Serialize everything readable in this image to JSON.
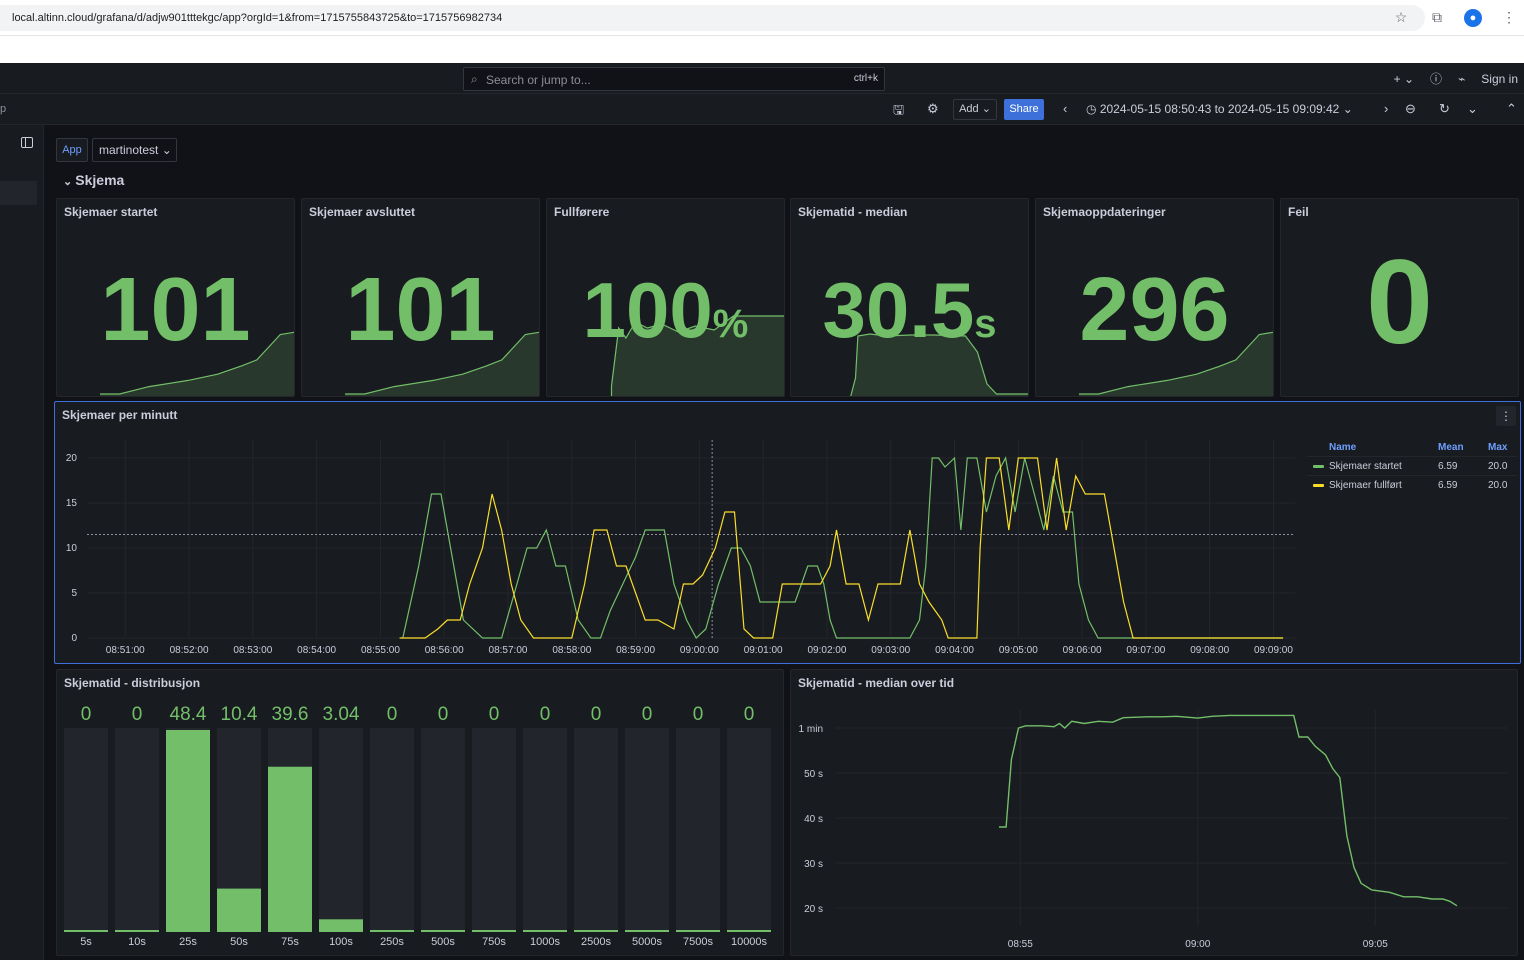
{
  "browser": {
    "url": "local.altinn.cloud/grafana/d/adjw901tttekgc/app?orgId=1&from=1715755843725&to=1715756982734",
    "avatar_glyph": "●"
  },
  "topnav": {
    "search_placeholder": "Search or jump to...",
    "search_shortcut": "ctrl+k",
    "plus_label": "+",
    "sign_in": "Sign in"
  },
  "toolbar": {
    "left_text": "p",
    "add_label": "Add",
    "share_label": "Share",
    "time_range": "2024-05-15 08:50:43 to 2024-05-15 09:09:42"
  },
  "variables": {
    "label": "App",
    "value": "martinotest"
  },
  "row": {
    "title": "Skjema"
  },
  "stats": [
    {
      "title": "Skjemaer startet",
      "value": "101",
      "unit": ""
    },
    {
      "title": "Skjemaer avsluttet",
      "value": "101",
      "unit": ""
    },
    {
      "title": "Fullførere",
      "value": "100",
      "unit": "%"
    },
    {
      "title": "Skjematid - median",
      "value": "30.5",
      "unit": "s"
    },
    {
      "title": "Skjemaoppdateringer",
      "value": "296",
      "unit": ""
    },
    {
      "title": "Feil",
      "value": "0",
      "unit": ""
    }
  ],
  "timeseries": {
    "title": "Skjemaer per minutt",
    "legend": {
      "headers": [
        "Name",
        "Mean",
        "Max"
      ],
      "rows": [
        {
          "name": "Skjemaer startet",
          "mean": "6.59",
          "max": "20.0",
          "color": "#73bf69"
        },
        {
          "name": "Skjemaer fullført",
          "mean": "6.59",
          "max": "20.0",
          "color": "#fade2a"
        }
      ]
    }
  },
  "histogram": {
    "title": "Skjematid - distribusjon"
  },
  "median_time": {
    "title": "Skjematid - median over tid"
  },
  "chart_data": [
    {
      "type": "line",
      "title": "Skjemaer per minutt",
      "x_ticks": [
        "08:51:00",
        "08:52:00",
        "08:53:00",
        "08:54:00",
        "08:55:00",
        "08:56:00",
        "08:57:00",
        "08:58:00",
        "08:59:00",
        "09:00:00",
        "09:01:00",
        "09:02:00",
        "09:03:00",
        "09:04:00",
        "09:05:00",
        "09:06:00",
        "09:07:00",
        "09:08:00",
        "09:09:00"
      ],
      "y_ticks": [
        0,
        5,
        10,
        15,
        20
      ],
      "ylim": [
        0,
        22
      ],
      "series": [
        {
          "name": "Skjemaer startet",
          "color": "#73bf69",
          "points": [
            [
              4.35,
              0
            ],
            [
              4.6,
              8
            ],
            [
              4.8,
              16
            ],
            [
              4.95,
              16
            ],
            [
              5.1,
              10
            ],
            [
              5.3,
              2
            ],
            [
              5.6,
              0
            ],
            [
              5.9,
              0
            ],
            [
              6.1,
              5
            ],
            [
              6.3,
              10
            ],
            [
              6.45,
              10
            ],
            [
              6.6,
              12
            ],
            [
              6.75,
              8
            ],
            [
              6.9,
              8
            ],
            [
              7.1,
              2
            ],
            [
              7.3,
              0
            ],
            [
              7.45,
              0
            ],
            [
              7.6,
              3
            ],
            [
              7.8,
              6
            ],
            [
              8.0,
              9
            ],
            [
              8.15,
              12
            ],
            [
              8.45,
              12
            ],
            [
              8.6,
              6
            ],
            [
              8.8,
              2
            ],
            [
              8.95,
              0
            ],
            [
              9.1,
              1
            ],
            [
              9.3,
              6
            ],
            [
              9.5,
              10
            ],
            [
              9.65,
              10
            ],
            [
              9.8,
              8
            ],
            [
              9.95,
              4
            ],
            [
              10.1,
              4
            ],
            [
              10.3,
              4
            ],
            [
              10.5,
              4
            ],
            [
              10.7,
              8
            ],
            [
              10.85,
              8
            ],
            [
              10.95,
              6
            ],
            [
              11.05,
              2
            ],
            [
              11.15,
              0
            ],
            [
              11.3,
              0
            ],
            [
              11.5,
              0
            ],
            [
              11.7,
              0
            ],
            [
              11.9,
              0
            ],
            [
              12.1,
              0
            ],
            [
              12.3,
              0
            ],
            [
              12.45,
              2
            ],
            [
              12.55,
              8
            ],
            [
              12.65,
              20
            ],
            [
              12.75,
              20
            ],
            [
              12.85,
              19
            ],
            [
              13.0,
              20
            ],
            [
              13.1,
              12
            ],
            [
              13.2,
              20
            ],
            [
              13.35,
              20
            ],
            [
              13.5,
              14
            ],
            [
              13.65,
              18
            ],
            [
              13.8,
              20
            ],
            [
              13.95,
              14
            ],
            [
              14.1,
              20
            ],
            [
              14.25,
              16
            ],
            [
              14.4,
              12
            ],
            [
              14.55,
              18
            ],
            [
              14.7,
              14
            ],
            [
              14.85,
              14
            ],
            [
              14.95,
              6
            ],
            [
              15.1,
              2
            ],
            [
              15.25,
              0
            ],
            [
              15.4,
              0
            ],
            [
              15.6,
              0
            ],
            [
              15.8,
              0
            ],
            [
              16.0,
              0
            ],
            [
              16.2,
              0
            ],
            [
              16.4,
              0
            ],
            [
              16.6,
              0
            ],
            [
              16.8,
              0
            ],
            [
              17.0,
              0
            ],
            [
              17.2,
              0
            ],
            [
              17.4,
              0
            ],
            [
              17.6,
              0
            ],
            [
              17.8,
              0
            ],
            [
              18.0,
              0
            ],
            [
              18.15,
              0
            ]
          ]
        },
        {
          "name": "Skjemaer fullført",
          "color": "#fade2a",
          "points": [
            [
              4.3,
              0
            ],
            [
              4.5,
              0
            ],
            [
              4.7,
              0
            ],
            [
              4.9,
              1
            ],
            [
              5.05,
              2
            ],
            [
              5.25,
              2
            ],
            [
              5.4,
              6
            ],
            [
              5.6,
              10
            ],
            [
              5.75,
              16
            ],
            [
              5.9,
              12
            ],
            [
              6.05,
              6
            ],
            [
              6.2,
              2
            ],
            [
              6.4,
              0
            ],
            [
              6.6,
              0
            ],
            [
              6.8,
              0
            ],
            [
              7.0,
              0
            ],
            [
              7.2,
              6
            ],
            [
              7.35,
              12
            ],
            [
              7.55,
              12
            ],
            [
              7.7,
              8
            ],
            [
              7.85,
              8
            ],
            [
              8.0,
              5
            ],
            [
              8.15,
              2
            ],
            [
              8.35,
              2
            ],
            [
              8.6,
              1
            ],
            [
              8.75,
              6
            ],
            [
              8.9,
              6
            ],
            [
              9.05,
              7
            ],
            [
              9.25,
              10
            ],
            [
              9.4,
              14
            ],
            [
              9.55,
              14
            ],
            [
              9.7,
              1
            ],
            [
              9.85,
              0
            ],
            [
              10.0,
              0
            ],
            [
              10.15,
              0
            ],
            [
              10.3,
              6
            ],
            [
              10.45,
              6
            ],
            [
              10.65,
              6
            ],
            [
              10.9,
              6
            ],
            [
              11.05,
              8
            ],
            [
              11.15,
              12
            ],
            [
              11.3,
              6
            ],
            [
              11.5,
              6
            ],
            [
              11.65,
              2
            ],
            [
              11.8,
              6
            ],
            [
              11.95,
              6
            ],
            [
              12.15,
              6
            ],
            [
              12.3,
              12
            ],
            [
              12.45,
              6
            ],
            [
              12.6,
              4
            ],
            [
              12.8,
              2
            ],
            [
              12.9,
              0
            ],
            [
              13.05,
              0
            ],
            [
              13.2,
              0
            ],
            [
              13.35,
              0
            ],
            [
              13.4,
              10
            ],
            [
              13.5,
              20
            ],
            [
              13.7,
              20
            ],
            [
              13.85,
              12
            ],
            [
              14.0,
              20
            ],
            [
              14.15,
              20
            ],
            [
              14.3,
              20
            ],
            [
              14.45,
              12
            ],
            [
              14.6,
              20
            ],
            [
              14.75,
              12
            ],
            [
              14.9,
              18
            ],
            [
              15.05,
              16
            ],
            [
              15.2,
              16
            ],
            [
              15.35,
              16
            ],
            [
              15.5,
              10
            ],
            [
              15.65,
              4
            ],
            [
              15.8,
              0
            ],
            [
              16.0,
              0
            ],
            [
              16.2,
              0
            ],
            [
              16.4,
              0
            ],
            [
              16.6,
              0
            ],
            [
              16.8,
              0
            ],
            [
              17.0,
              0
            ],
            [
              17.2,
              0
            ],
            [
              17.4,
              0
            ],
            [
              17.6,
              0
            ],
            [
              17.8,
              0
            ],
            [
              18.0,
              0
            ],
            [
              18.15,
              0
            ]
          ]
        }
      ],
      "threshold": 11.5,
      "cursor_x": 9.2
    },
    {
      "type": "bar",
      "title": "Skjematid - distribusjon",
      "categories": [
        "5s",
        "10s",
        "25s",
        "50s",
        "75s",
        "100s",
        "250s",
        "500s",
        "750s",
        "1000s",
        "2500s",
        "5000s",
        "7500s",
        "10000s"
      ],
      "value_labels": [
        "0",
        "0",
        "48.4",
        "10.4",
        "39.6",
        "3.04",
        "0",
        "0",
        "0",
        "0",
        "0",
        "0",
        "0",
        "0"
      ],
      "values": [
        0,
        0,
        48.4,
        10.4,
        39.6,
        3.04,
        0,
        0,
        0,
        0,
        0,
        0,
        0,
        0
      ],
      "ylim": [
        0,
        48.4
      ],
      "color": "#73bf69"
    },
    {
      "type": "line",
      "title": "Skjematid - median over tid",
      "y_ticks": [
        "20 s",
        "30 s",
        "40 s",
        "50 s",
        "1 min"
      ],
      "y_values": [
        20,
        30,
        40,
        50,
        60
      ],
      "x_ticks": [
        "08:55",
        "09:00",
        "09:05"
      ],
      "color": "#73bf69",
      "series": [
        {
          "points": [
            [
              0.0,
              38
            ],
            [
              0.2,
              38
            ],
            [
              0.35,
              53
            ],
            [
              0.55,
              60
            ],
            [
              0.75,
              60.5
            ],
            [
              1.2,
              60.5
            ],
            [
              1.55,
              60.3
            ],
            [
              1.7,
              61
            ],
            [
              1.85,
              60
            ],
            [
              2.05,
              61.5
            ],
            [
              2.4,
              61
            ],
            [
              2.8,
              61.5
            ],
            [
              3.2,
              61.3
            ],
            [
              3.5,
              62.3
            ],
            [
              4.2,
              62.5
            ],
            [
              4.6,
              62.5
            ],
            [
              5.0,
              62.6
            ],
            [
              5.6,
              62.2
            ],
            [
              6.0,
              62.6
            ],
            [
              6.5,
              62.8
            ],
            [
              7.5,
              62.8
            ],
            [
              8.3,
              62.8
            ],
            [
              8.45,
              58
            ],
            [
              8.7,
              58
            ],
            [
              8.9,
              56
            ],
            [
              9.2,
              54
            ],
            [
              9.4,
              51
            ],
            [
              9.6,
              49
            ],
            [
              9.8,
              36
            ],
            [
              10.0,
              29
            ],
            [
              10.2,
              25.5
            ],
            [
              10.5,
              24
            ],
            [
              11.0,
              23.5
            ],
            [
              11.4,
              22.5
            ],
            [
              11.8,
              22.5
            ],
            [
              12.2,
              22
            ],
            [
              12.5,
              22
            ],
            [
              12.7,
              21.5
            ],
            [
              12.9,
              20.5
            ]
          ]
        }
      ],
      "x_tick_positions": [
        0.6,
        5.6,
        10.6
      ]
    }
  ]
}
